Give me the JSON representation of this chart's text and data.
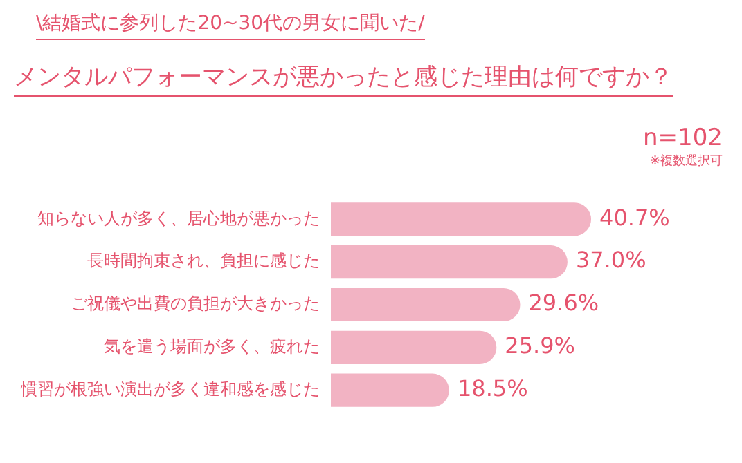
{
  "chart_data": {
    "type": "bar",
    "orientation": "horizontal",
    "subtitle": "\\結婚式に参列した20~30代の男女に聞いた/",
    "title": "メンタルパフォーマンスが悪かったと感じた理由は何ですか？",
    "annotations": [
      "n=102",
      "※複数選択可"
    ],
    "categories": [
      "知らない人が多く、居心地が悪かった",
      "長時間拘束され、負担に感じた",
      "ご祝儀や出費の負担が大きかった",
      "気を遣う場面が多く、疲れた",
      "慣習が根強い演出が多く違和感を感じた"
    ],
    "values": [
      40.7,
      37.0,
      29.6,
      25.9,
      18.5
    ],
    "value_labels": [
      "40.7%",
      "37.0%",
      "29.6%",
      "25.9%",
      "18.5%"
    ],
    "color": "#f2b3c3",
    "tick_labels": "y",
    "grid": false,
    "legend": false
  }
}
